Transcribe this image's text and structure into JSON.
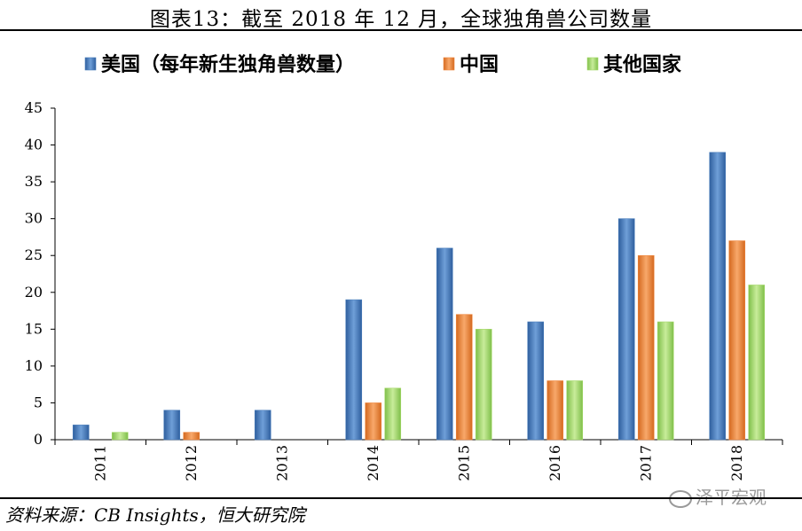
{
  "title": "图表13：截至 2018 年 12 月，全球独角兽公司数量",
  "source": "资料来源：CB Insights，恒大研究院",
  "watermark": "泽平宏观",
  "chart_data": {
    "type": "bar",
    "categories": [
      "2011",
      "2012",
      "2013",
      "2014",
      "2015",
      "2016",
      "2017",
      "2018"
    ],
    "series": [
      {
        "name": "美国（每年新生独角兽数量）",
        "color": "#4a7ebb",
        "values": [
          2,
          4,
          4,
          19,
          26,
          16,
          30,
          39
        ]
      },
      {
        "name": "中国",
        "color": "#f0883e",
        "values": [
          0,
          1,
          0,
          5,
          17,
          8,
          25,
          27
        ]
      },
      {
        "name": "其他国家",
        "color": "#a6d96a",
        "values": [
          1,
          0,
          0,
          7,
          15,
          8,
          16,
          21
        ]
      }
    ],
    "ylim": [
      0,
      45
    ],
    "yticks": [
      0,
      5,
      10,
      15,
      20,
      25,
      30,
      35,
      40,
      45
    ],
    "legend": "top",
    "grid": false
  }
}
